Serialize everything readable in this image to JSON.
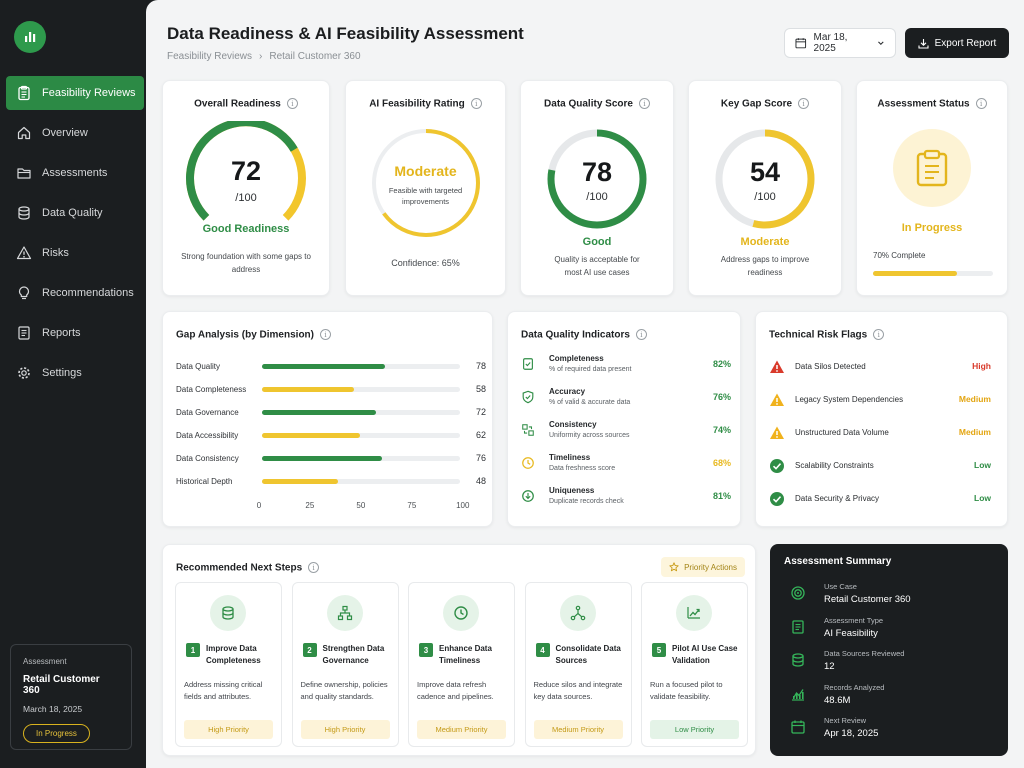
{
  "header": {
    "title": "Data Readiness & AI Feasibility Assessment",
    "breadcrumb": [
      "Feasibility Reviews",
      "Retail Customer 360"
    ],
    "date": "Mar 18, 2025",
    "export_label": "Export Report"
  },
  "sidebar": {
    "items": [
      {
        "label": "Feasibility Reviews",
        "icon": "clipboard-icon",
        "active": true
      },
      {
        "label": "Overview",
        "icon": "home-icon"
      },
      {
        "label": "Assessments",
        "icon": "folder-icon"
      },
      {
        "label": "Data Quality",
        "icon": "database-icon"
      },
      {
        "label": "Risks",
        "icon": "warning-icon"
      },
      {
        "label": "Recommendations",
        "icon": "lightbulb-icon"
      },
      {
        "label": "Reports",
        "icon": "report-icon"
      },
      {
        "label": "Settings",
        "icon": "gear-icon"
      }
    ],
    "card": {
      "label": "Assessment",
      "name": "Retail Customer 360",
      "date": "March 18, 2025",
      "status": "In Progress"
    }
  },
  "kpis": {
    "overall": {
      "title": "Overall Readiness",
      "value": "72",
      "max": "/100",
      "fraction": 0.72,
      "label": "Good Readiness",
      "desc": "Strong foundation with some gaps to address"
    },
    "ai": {
      "title": "AI Feasibility Rating",
      "value": "Moderate",
      "sub": "Feasible with targeted improvements",
      "confidence": "Confidence: 65%",
      "fraction": 0.65
    },
    "dq": {
      "title": "Data Quality Score",
      "value": "78",
      "max": "/100",
      "fraction": 0.78,
      "label": "Good",
      "desc": "Quality is acceptable for most AI use cases"
    },
    "gap": {
      "title": "Key Gap Score",
      "value": "54",
      "max": "/100",
      "fraction": 0.54,
      "label": "Moderate",
      "desc": "Address gaps to improve readiness"
    },
    "status": {
      "title": "Assessment Status",
      "value": "In Progress",
      "progress_text": "70% Complete",
      "fraction": 0.7
    }
  },
  "gap_analysis": {
    "title": "Gap Analysis (by Dimension)",
    "rows": [
      {
        "label": "Data Quality",
        "value": 78,
        "color": "#2f8d46"
      },
      {
        "label": "Data Completeness",
        "value": 58,
        "color": "#efc52f"
      },
      {
        "label": "Data Governance",
        "value": 72,
        "color": "#2f8d46"
      },
      {
        "label": "Data Accessibility",
        "value": 62,
        "color": "#efc52f"
      },
      {
        "label": "Data Consistency",
        "value": 76,
        "color": "#2f8d46"
      },
      {
        "label": "Historical Depth",
        "value": 48,
        "color": "#efc52f"
      }
    ],
    "ticks": [
      "0",
      "25",
      "50",
      "75",
      "100"
    ]
  },
  "dq_indicators": {
    "title": "Data Quality Indicators",
    "rows": [
      {
        "name": "Completeness",
        "sub": "% of required data present",
        "value": "82%",
        "color": "#2f8d46"
      },
      {
        "name": "Accuracy",
        "sub": "% of valid & accurate data",
        "value": "76%",
        "color": "#2f8d46"
      },
      {
        "name": "Consistency",
        "sub": "Uniformity across sources",
        "value": "74%",
        "color": "#2f8d46"
      },
      {
        "name": "Timeliness",
        "sub": "Data freshness score",
        "value": "68%",
        "color": "#e8b920"
      },
      {
        "name": "Uniqueness",
        "sub": "Duplicate records check",
        "value": "81%",
        "color": "#2f8d46"
      }
    ]
  },
  "risk_flags": {
    "title": "Technical Risk Flags",
    "rows": [
      {
        "name": "Data Silos Detected",
        "level": "High",
        "color": "#d93a2b",
        "icon": "alert-red-icon"
      },
      {
        "name": "Legacy System Dependencies",
        "level": "Medium",
        "color": "#e3a511",
        "icon": "alert-yellow-icon"
      },
      {
        "name": "Unstructured Data Volume",
        "level": "Medium",
        "color": "#e3a511",
        "icon": "alert-yellow-icon"
      },
      {
        "name": "Scalability Constraints",
        "level": "Low",
        "color": "#2f8d46",
        "icon": "check-circle-icon"
      },
      {
        "name": "Data Security & Privacy",
        "level": "Low",
        "color": "#2f8d46",
        "icon": "check-circle-icon"
      }
    ]
  },
  "next_steps": {
    "title": "Recommended Next Steps",
    "chip": "Priority Actions",
    "steps": [
      {
        "num": "1",
        "title": "Improve Data Completeness",
        "desc": "Address missing critical fields and attributes.",
        "priority": "High Priority",
        "icon": "database-icon"
      },
      {
        "num": "2",
        "title": "Strengthen Data Governance",
        "desc": "Define ownership, policies and quality standards.",
        "priority": "High Priority",
        "icon": "hierarchy-icon"
      },
      {
        "num": "3",
        "title": "Enhance Data Timeliness",
        "desc": "Improve data refresh cadence and pipelines.",
        "priority": "Medium Priority",
        "icon": "clock-icon"
      },
      {
        "num": "4",
        "title": "Consolidate Data Sources",
        "desc": "Reduce silos and integrate key data sources.",
        "priority": "Medium Priority",
        "icon": "nodes-icon"
      },
      {
        "num": "5",
        "title": "Pilot AI Use Case Validation",
        "desc": "Run a focused pilot to validate feasibility.",
        "priority": "Low Priority",
        "icon": "trend-icon"
      }
    ]
  },
  "summary": {
    "title": "Assessment Summary",
    "rows": [
      {
        "k": "Use Case",
        "v": "Retail Customer 360",
        "icon": "target-icon"
      },
      {
        "k": "Assessment Type",
        "v": "AI Feasibility",
        "icon": "document-icon"
      },
      {
        "k": "Data Sources Reviewed",
        "v": "12",
        "icon": "database-icon"
      },
      {
        "k": "Records Analyzed",
        "v": "48.6M",
        "icon": "bar-chart-icon"
      },
      {
        "k": "Next Review",
        "v": "Apr 18, 2025",
        "icon": "calendar-icon"
      }
    ]
  },
  "colors": {
    "green": "#2f8d46",
    "yellow": "#efc52f",
    "dark": "#1b1e20"
  }
}
